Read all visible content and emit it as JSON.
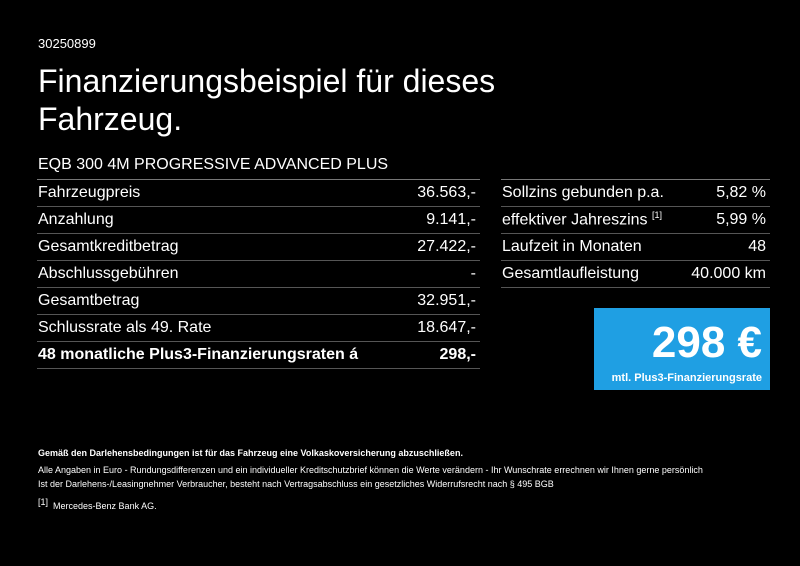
{
  "header": {
    "id": "30250899",
    "title": [
      "Finanzierungsbeispiel für dieses",
      "Fahrzeug."
    ],
    "model": "EQB 300 4M PROGRESSIVE ADVANCED PLUS"
  },
  "left_table": {
    "rows": [
      {
        "label": "Fahrzeugpreis",
        "value": "36.563,-"
      },
      {
        "label": "Anzahlung",
        "value": "9.141,-"
      },
      {
        "label": "Gesamtkreditbetrag",
        "value": "27.422,-"
      },
      {
        "label": "Abschlussgebühren",
        "value": "-"
      },
      {
        "label": "Gesamtbetrag",
        "value": "32.951,-"
      },
      {
        "label": "Schlussrate als 49. Rate",
        "value": "18.647,-"
      },
      {
        "label": "48 monatliche Plus3-Finanzierungsraten á",
        "value": "298,-",
        "bold": true
      }
    ]
  },
  "right_table": {
    "rows": [
      {
        "label": "Sollzins gebunden p.a.",
        "value": "5,82 %"
      },
      {
        "label": "effektiver Jahreszins",
        "note": "[1]",
        "value": "5,99 %"
      },
      {
        "label": "Laufzeit in Monaten",
        "value": "48"
      },
      {
        "label": "Gesamtlaufleistung",
        "value": "40.000 km"
      }
    ]
  },
  "rate_box": {
    "amount": "298 €",
    "caption": "mtl. Plus3-Finanzierungsrate"
  },
  "footer": {
    "bold": "Gemäß den Darlehensbedingungen ist für das Fahrzeug eine Volkaskoversicherung abzuschließen.",
    "lines": [
      "Alle Angaben in Euro - Rundungsdifferenzen und ein individueller Kreditschutzbrief können die Werte verändern - Ihr Wunschrate errechnen wir Ihnen gerne persönlich",
      "Ist der Darlehens-/Leasingnehmer Verbraucher, besteht nach Vertragsabschluss ein gesetzliches Widerrufsrecht nach § 495 BGB"
    ],
    "footnote": {
      "ref": "[1]",
      "text": "Mercedes-Benz Bank AG."
    }
  }
}
